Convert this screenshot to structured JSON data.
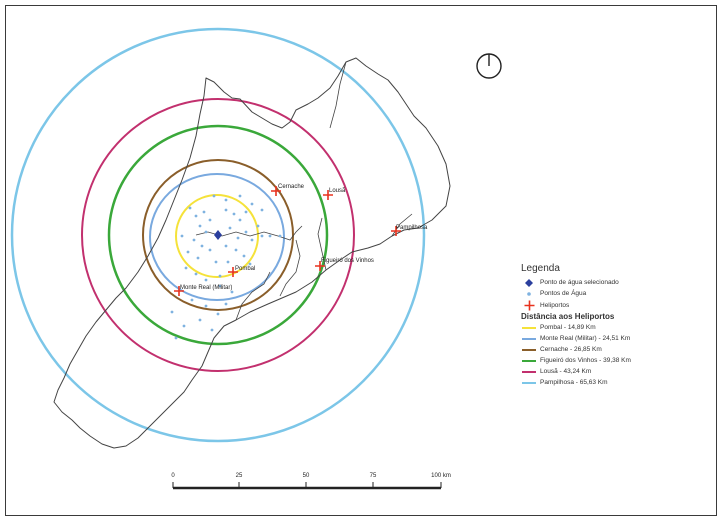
{
  "map": {
    "north_arrow": "north-arrow-icon",
    "heliports": [
      {
        "name": "Cernache"
      },
      {
        "name": "Lousã"
      },
      {
        "name": "Pampilhosa"
      },
      {
        "name": "Figueiró dos Vinhos"
      },
      {
        "name": "Pombal"
      },
      {
        "name": "Monte Real (Militar)"
      }
    ],
    "scale_bar": {
      "ticks": [
        "0",
        "25",
        "50",
        "75",
        "100 km"
      ]
    }
  },
  "legend": {
    "title": "Legenda",
    "items": [
      {
        "label": "Ponto de água selecionado",
        "icon": "diamond-icon",
        "color": "#2b3f9e"
      },
      {
        "label": "Pontos de Água",
        "icon": "dot-icon",
        "color": "#7fb2e0"
      },
      {
        "label": "Heliportos",
        "icon": "plane-icon",
        "color": "#e8321e"
      }
    ],
    "distance_title": "Distância aos Heliportos",
    "distances": [
      {
        "label": "Pombal - 14,89 Km",
        "color": "#f5e23a"
      },
      {
        "label": "Monte Real (Militar) - 24,51 Km",
        "color": "#79a9df"
      },
      {
        "label": "Cernache - 26,85 Km",
        "color": "#8a5e2a"
      },
      {
        "label": "Figueiró dos Vinhos - 39,38 Km",
        "color": "#3aa83a"
      },
      {
        "label": "Lousã - 43,24 Km",
        "color": "#c2306e"
      },
      {
        "label": "Pampilhosa - 65,63 Km",
        "color": "#7cc6e8"
      }
    ]
  }
}
